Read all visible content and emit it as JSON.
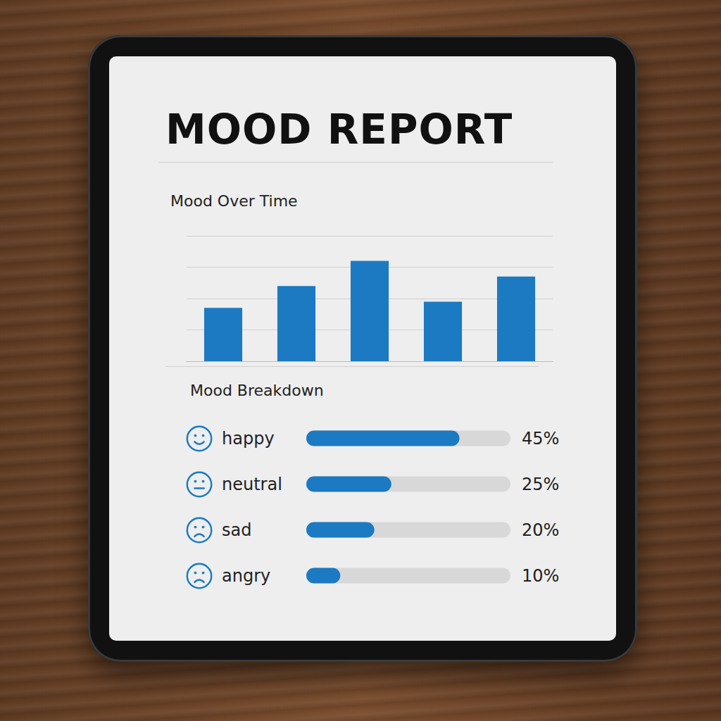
{
  "title": "MOOD REPORT",
  "chart_data": [
    {
      "type": "bar",
      "title": "Mood Over Time",
      "categories": [
        null,
        null,
        null,
        null,
        null
      ],
      "values": [
        1.7,
        2.4,
        3.2,
        1.9,
        2.7
      ],
      "color": "#1b7ac2",
      "ylim": [
        0,
        4
      ],
      "yticks": [
        0,
        1,
        2,
        3,
        4
      ],
      "grid": true,
      "tick_labels": false
    },
    {
      "type": "bar",
      "orientation": "horizontal",
      "title": "Mood Breakdown",
      "categories": [
        "happy",
        "neutral",
        "sad",
        "angry"
      ],
      "values": [
        45,
        25,
        20,
        10
      ],
      "value_labels": [
        "45%",
        "25%",
        "20%",
        "10%"
      ],
      "data_labels": true,
      "color": "#1b7ac2",
      "xlim": [
        0,
        60
      ],
      "xticks": [
        0,
        60
      ],
      "grid": false,
      "tick_labels": "y"
    }
  ]
}
